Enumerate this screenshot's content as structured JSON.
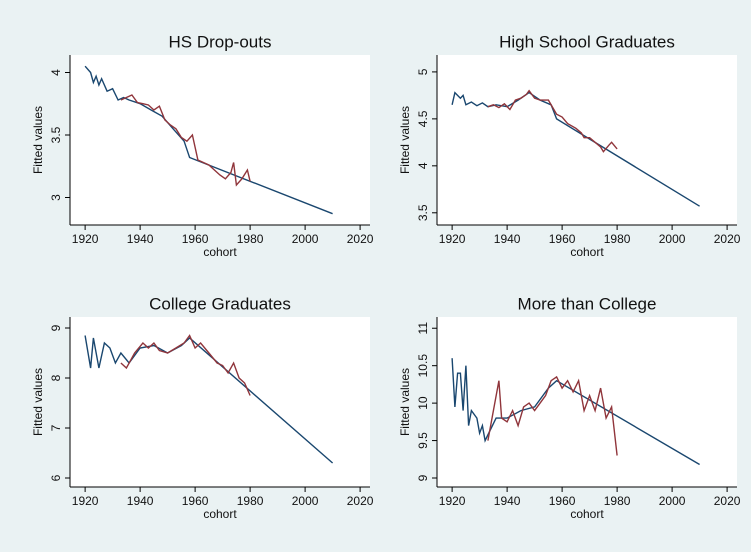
{
  "chart_data": [
    {
      "type": "line",
      "title": "HS Drop-outs",
      "ylabel": "Fitted values",
      "xlabel": "cohort",
      "xlim": [
        1914.5,
        2023.6
      ],
      "ylim": [
        2.78,
        4.14
      ],
      "xticks": [
        1920,
        1940,
        1960,
        1980,
        2000,
        2020
      ],
      "yticks": [
        3,
        3.5,
        4
      ],
      "grid": false,
      "series": [
        {
          "color": "#1a476f",
          "x": [
            1920,
            1922,
            1923,
            1924,
            1925,
            1926,
            1928,
            1930,
            1932,
            1934,
            1936,
            1940,
            1944,
            1948,
            1952,
            1956,
            1958,
            2010
          ],
          "values": [
            4.05,
            4.0,
            3.92,
            3.97,
            3.9,
            3.95,
            3.85,
            3.87,
            3.78,
            3.8,
            3.78,
            3.75,
            3.7,
            3.65,
            3.55,
            3.45,
            3.32,
            2.87
          ]
        },
        {
          "color": "#90353b",
          "x": [
            1933,
            1935,
            1937,
            1939,
            1941,
            1943,
            1945,
            1947,
            1949,
            1951,
            1953,
            1955,
            1957,
            1959,
            1961,
            1963,
            1965,
            1967,
            1969,
            1971,
            1973,
            1974,
            1975,
            1977,
            1979,
            1980
          ],
          "values": [
            3.78,
            3.8,
            3.82,
            3.76,
            3.75,
            3.74,
            3.7,
            3.73,
            3.62,
            3.58,
            3.55,
            3.48,
            3.45,
            3.5,
            3.3,
            3.28,
            3.26,
            3.22,
            3.18,
            3.15,
            3.2,
            3.28,
            3.1,
            3.15,
            3.22,
            3.13
          ]
        }
      ]
    },
    {
      "type": "line",
      "title": "High School Graduates",
      "ylabel": "Fitted values",
      "xlabel": "cohort",
      "xlim": [
        1914.5,
        2023.6
      ],
      "ylim": [
        3.37,
        5.18
      ],
      "xticks": [
        1920,
        1940,
        1960,
        1980,
        2000,
        2020
      ],
      "yticks": [
        3.5,
        4,
        4.5,
        5
      ],
      "grid": false,
      "series": [
        {
          "color": "#1a476f",
          "x": [
            1920,
            1921,
            1923,
            1924,
            1925,
            1927,
            1929,
            1931,
            1933,
            1936,
            1940,
            1944,
            1948,
            1952,
            1956,
            1958,
            2010
          ],
          "values": [
            4.65,
            4.78,
            4.72,
            4.75,
            4.65,
            4.68,
            4.64,
            4.67,
            4.63,
            4.65,
            4.63,
            4.7,
            4.78,
            4.7,
            4.65,
            4.5,
            3.57
          ]
        },
        {
          "color": "#90353b",
          "x": [
            1933,
            1935,
            1937,
            1939,
            1941,
            1943,
            1945,
            1947,
            1948,
            1950,
            1952,
            1955,
            1958,
            1960,
            1962,
            1965,
            1967,
            1968,
            1970,
            1972,
            1974,
            1975,
            1977,
            1978,
            1980
          ],
          "values": [
            4.63,
            4.65,
            4.62,
            4.66,
            4.6,
            4.7,
            4.72,
            4.76,
            4.8,
            4.72,
            4.7,
            4.7,
            4.55,
            4.52,
            4.45,
            4.4,
            4.35,
            4.3,
            4.3,
            4.25,
            4.2,
            4.15,
            4.22,
            4.25,
            4.18
          ]
        }
      ]
    },
    {
      "type": "line",
      "title": "College Graduates",
      "ylabel": "Fitted values",
      "xlabel": "cohort",
      "xlim": [
        1914.5,
        2023.6
      ],
      "ylim": [
        5.82,
        9.22
      ],
      "xticks": [
        1920,
        1940,
        1960,
        1980,
        2000,
        2020
      ],
      "yticks": [
        6,
        7,
        8,
        9
      ],
      "grid": false,
      "series": [
        {
          "color": "#1a476f",
          "x": [
            1920,
            1922,
            1923,
            1925,
            1927,
            1929,
            1931,
            1933,
            1936,
            1940,
            1945,
            1950,
            1955,
            1958,
            2010
          ],
          "values": [
            8.85,
            8.2,
            8.8,
            8.2,
            8.7,
            8.6,
            8.3,
            8.5,
            8.3,
            8.6,
            8.65,
            8.5,
            8.65,
            8.8,
            6.3
          ]
        },
        {
          "color": "#90353b",
          "x": [
            1933,
            1935,
            1938,
            1941,
            1943,
            1945,
            1947,
            1950,
            1953,
            1956,
            1958,
            1960,
            1962,
            1965,
            1968,
            1970,
            1972,
            1974,
            1976,
            1978,
            1980
          ],
          "values": [
            8.3,
            8.2,
            8.5,
            8.7,
            8.6,
            8.7,
            8.55,
            8.5,
            8.6,
            8.7,
            8.85,
            8.6,
            8.7,
            8.5,
            8.3,
            8.25,
            8.1,
            8.3,
            8.0,
            7.9,
            7.65
          ]
        }
      ]
    },
    {
      "type": "line",
      "title": "More than College",
      "ylabel": "Fitted values",
      "xlabel": "cohort",
      "xlim": [
        1914.5,
        2023.6
      ],
      "ylim": [
        8.88,
        11.15
      ],
      "xticks": [
        1920,
        1940,
        1960,
        1980,
        2000,
        2020
      ],
      "yticks": [
        9,
        9.5,
        10,
        10.5,
        11
      ],
      "grid": false,
      "series": [
        {
          "color": "#1a476f",
          "x": [
            1920,
            1921,
            1922,
            1923,
            1924,
            1925,
            1926,
            1927,
            1929,
            1930,
            1931,
            1932,
            1936,
            1940,
            1945,
            1950,
            1955,
            1958,
            2010
          ],
          "values": [
            10.6,
            9.95,
            10.4,
            10.4,
            9.9,
            10.5,
            9.7,
            9.9,
            9.8,
            9.6,
            9.7,
            9.5,
            9.8,
            9.8,
            9.9,
            9.95,
            10.2,
            10.3,
            9.18
          ]
        },
        {
          "color": "#90353b",
          "x": [
            1933,
            1935,
            1937,
            1938,
            1940,
            1942,
            1944,
            1946,
            1948,
            1950,
            1952,
            1954,
            1956,
            1958,
            1960,
            1962,
            1964,
            1966,
            1968,
            1970,
            1972,
            1974,
            1976,
            1978,
            1980
          ],
          "values": [
            9.5,
            9.9,
            10.3,
            9.8,
            9.75,
            9.9,
            9.7,
            9.95,
            10.0,
            9.9,
            10.0,
            10.1,
            10.3,
            10.35,
            10.2,
            10.3,
            10.15,
            10.3,
            9.9,
            10.1,
            9.9,
            10.2,
            9.8,
            9.95,
            9.3
          ]
        }
      ]
    }
  ]
}
